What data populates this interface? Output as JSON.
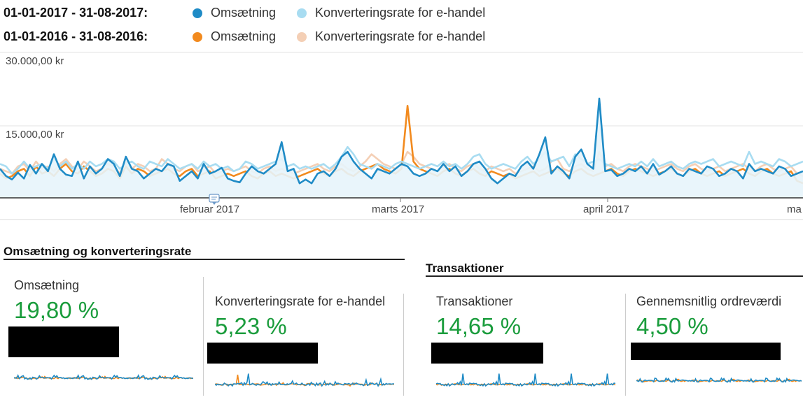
{
  "legend": {
    "rows": [
      {
        "period": "01-01-2017 - 31-08-2017:",
        "items": [
          {
            "label": "Omsætning",
            "color": "#1f8bc6"
          },
          {
            "label": "Konverteringsrate for e-handel",
            "color": "#a8dcf1"
          }
        ]
      },
      {
        "period": "01-01-2016 - 31-08-2016:",
        "items": [
          {
            "label": "Omsætning",
            "color": "#f28a1e"
          },
          {
            "label": "Konverteringsrate for e-handel",
            "color": "#f4cfb5"
          }
        ]
      }
    ]
  },
  "chart_data": {
    "type": "line",
    "y_ticks": [
      "30.000,00 kr",
      "15.000,00 kr"
    ],
    "ylim": [
      0,
      30000
    ],
    "x_labels": [
      "februar 2017",
      "marts 2017",
      "april 2017",
      "ma"
    ],
    "grid": true,
    "series": [
      {
        "name": "Omsætning",
        "period": "01-01-2017 - 31-08-2017",
        "color": "#1f8bc6",
        "filled": true,
        "values": [
          6000,
          4500,
          3800,
          5200,
          4000,
          6800,
          5000,
          7000,
          5500,
          9000,
          6000,
          4800,
          4500,
          7500,
          4000,
          6500,
          5000,
          6000,
          8000,
          7000,
          4500,
          8500,
          6000,
          5500,
          4000,
          5000,
          6000,
          5500,
          7000,
          6500,
          3500,
          4500,
          5500,
          4000,
          7000,
          5000,
          5500,
          6200,
          4000,
          3500,
          3200,
          5000,
          6500,
          5500,
          5000,
          6000,
          7000,
          11500,
          5500,
          6000,
          3000,
          3800,
          3000,
          5000,
          5500,
          4500,
          6000,
          8500,
          9500,
          7500,
          6000,
          5000,
          4000,
          6000,
          5500,
          5000,
          6000,
          7000,
          6500,
          5000,
          4500,
          5000,
          6000,
          5500,
          7000,
          5500,
          6500,
          4500,
          5500,
          7000,
          7500,
          6000,
          4000,
          3000,
          4000,
          5000,
          4500,
          6500,
          7500,
          6000,
          9000,
          12500,
          5000,
          6500,
          5500,
          4000,
          8500,
          10000,
          7000,
          6000,
          20500,
          5500,
          5800,
          4500,
          5000,
          6000,
          5500,
          6500,
          5000,
          7000,
          4800,
          5500,
          6500,
          5000,
          4500,
          6000,
          5500,
          5000,
          6500,
          6000,
          4500,
          5000,
          6000,
          5500,
          4000,
          7000,
          5500,
          6000,
          5500,
          5000,
          6500,
          6000,
          4500,
          5000,
          5500
        ]
      },
      {
        "name": "Konverteringsrate for e-handel",
        "period": "01-01-2017 - 31-08-2017",
        "color": "#a8dcf1",
        "values": [
          7000,
          6500,
          5000,
          6000,
          7500,
          6000,
          6500,
          7000,
          6000,
          8000,
          6500,
          7500,
          6000,
          7000,
          6000,
          7500,
          6500,
          7000,
          8000,
          7500,
          6000,
          7000,
          7500,
          6500,
          6000,
          7500,
          7000,
          6500,
          8000,
          7000,
          6000,
          6500,
          7000,
          6000,
          7500,
          6500,
          7000,
          6000,
          6500,
          5500,
          6000,
          7500,
          7000,
          6000,
          6500,
          7000,
          7500,
          8000,
          6500,
          7000,
          6000,
          6500,
          6000,
          6500,
          7000,
          6000,
          7000,
          8500,
          10500,
          9000,
          7000,
          6500,
          6000,
          7000,
          6500,
          6000,
          7000,
          7500,
          7000,
          6500,
          6000,
          6500,
          7000,
          6500,
          7500,
          6500,
          7000,
          6000,
          7000,
          8500,
          9000,
          7000,
          6000,
          6500,
          7000,
          6500,
          6000,
          7500,
          8500,
          7000,
          8000,
          9500,
          7500,
          8000,
          8500,
          6500,
          9000,
          8000,
          7000,
          7500,
          8000,
          7000,
          6500,
          6000,
          6500,
          7000,
          6500,
          7500,
          6500,
          8000,
          6500,
          7000,
          7500,
          6500,
          6000,
          7000,
          7500,
          7000,
          7500,
          8000,
          6500,
          7000,
          7500,
          7000,
          6500,
          9500,
          7000,
          7500,
          7000,
          6500,
          8000,
          7500,
          6500,
          7000,
          7500
        ]
      },
      {
        "name": "Omsætning",
        "period": "01-01-2016 - 31-08-2016",
        "color": "#f28a1e",
        "values": [
          5000,
          4000,
          4500,
          5500,
          6000,
          4500,
          6500,
          5000,
          5500,
          4500,
          6000,
          7000,
          5500,
          5000,
          6500,
          5500,
          4500,
          5000,
          6000,
          5500,
          4000,
          6500,
          5000,
          6000,
          5500,
          4500,
          5000,
          5500,
          6000,
          5000,
          4500,
          5500,
          6000,
          4500,
          5000,
          5500,
          4000,
          4500,
          5000,
          4500,
          5000,
          5500,
          4500,
          4000,
          5000,
          5500,
          4500,
          5000,
          4500,
          4000,
          4500,
          5000,
          5500,
          6000,
          5000,
          4500,
          5500,
          6000,
          5000,
          4500,
          5500,
          6000,
          6500,
          7000,
          6000,
          5500,
          5000,
          6000,
          19000,
          7500,
          6000,
          5500,
          5000,
          4500,
          5500,
          6000,
          5000,
          4500,
          5500,
          6000,
          5000,
          4500,
          5500,
          5000,
          4500,
          5000,
          4000,
          4500,
          5000,
          5500,
          4500,
          5000,
          5500,
          6000,
          5000,
          4500,
          5500,
          6000,
          5000,
          4500,
          5000,
          5500,
          6000,
          5000,
          4500,
          5500,
          6000,
          5500,
          5000,
          4500,
          5000,
          5500,
          6000,
          5000,
          4500,
          5500,
          6000,
          5000,
          4500,
          5000,
          5500,
          4500,
          5000,
          5500,
          6000,
          5000,
          4500,
          5500,
          6000,
          5000,
          4500,
          5000,
          5500,
          3500,
          3000
        ]
      },
      {
        "name": "Konverteringsrate for e-handel",
        "period": "01-01-2016 - 31-08-2016",
        "color": "#f4cfb5",
        "values": [
          6000,
          5500,
          5000,
          6500,
          7000,
          5500,
          7500,
          6000,
          6500,
          5500,
          7000,
          8000,
          6500,
          6000,
          7500,
          6500,
          5500,
          6000,
          7000,
          6500,
          5000,
          7500,
          6000,
          7000,
          6500,
          5500,
          6000,
          8000,
          7000,
          6000,
          5500,
          6500,
          7000,
          5500,
          6000,
          6500,
          5000,
          5500,
          6000,
          5500,
          6000,
          6500,
          5500,
          5000,
          6000,
          6500,
          5500,
          6000,
          5500,
          5000,
          5500,
          6000,
          6500,
          7000,
          6000,
          5500,
          6500,
          7000,
          6000,
          5500,
          6500,
          7500,
          9000,
          8000,
          7000,
          6500,
          6000,
          7000,
          9500,
          8500,
          7000,
          6500,
          6000,
          5500,
          6500,
          7000,
          6000,
          5500,
          6500,
          7000,
          6000,
          5500,
          6500,
          6000,
          5500,
          6000,
          5000,
          5500,
          6000,
          6500,
          5500,
          6000,
          7500,
          8000,
          6000,
          5500,
          6500,
          7000,
          6000,
          5500,
          9500,
          6500,
          7000,
          6000,
          5500,
          6500,
          7000,
          6500,
          6000,
          5500,
          6000,
          6500,
          7000,
          6000,
          5500,
          6500,
          7000,
          6000,
          5500,
          6000,
          6500,
          5500,
          6000,
          6500,
          7000,
          6000,
          5500,
          6500,
          7000,
          6000,
          5500,
          6000,
          6500,
          5000,
          4500
        ]
      }
    ]
  },
  "sections": [
    {
      "title": "Omsætning og konverteringsrate",
      "cards": [
        {
          "label": "Omsætning",
          "value": "19,80 %"
        },
        {
          "label": "Konverteringsrate for e-handel",
          "value": "5,23 %"
        }
      ]
    },
    {
      "title": "Transaktioner",
      "cards": [
        {
          "label": "Transaktioner",
          "value": "14,65 %"
        },
        {
          "label": "Gennemsnitlig ordreværdi",
          "value": "4,50 %"
        }
      ]
    }
  ],
  "colors": {
    "accent_green": "#1a9c3c",
    "grid": "#e3e3e3",
    "axis": "#333333"
  }
}
